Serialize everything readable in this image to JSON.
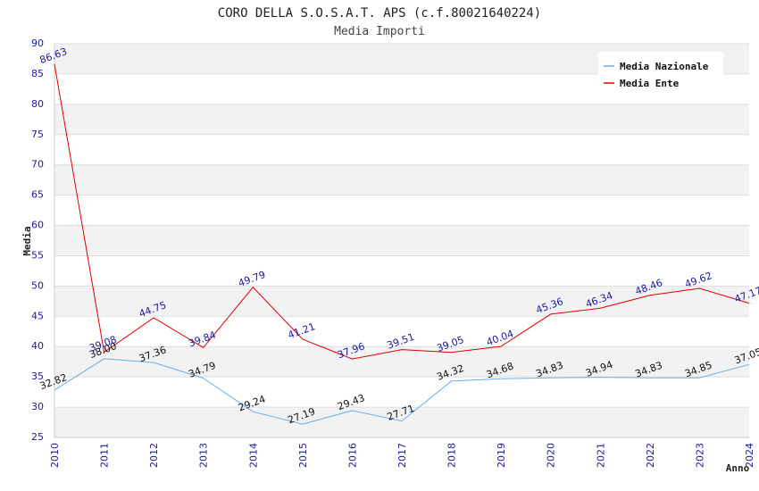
{
  "chart_data": {
    "type": "line",
    "title": "CORO DELLA S.O.S.A.T. APS (c.f.80021640224)",
    "subtitle": "Media Importi",
    "xlabel": "Anno",
    "ylabel": "Media",
    "x": [
      "2010",
      "2011",
      "2012",
      "2013",
      "2014",
      "2015",
      "2016",
      "2017",
      "2018",
      "2019",
      "2020",
      "2021",
      "2022",
      "2023",
      "2024"
    ],
    "ylim": [
      25,
      90
    ],
    "yticks": [
      25,
      30,
      35,
      40,
      45,
      50,
      55,
      60,
      65,
      70,
      75,
      80,
      85,
      90
    ],
    "grid": "horizontal alternating bands",
    "legend_position": "top-right",
    "series": [
      {
        "name": "Media Nazionale",
        "color": "#6aaee8",
        "label_color": "#111111",
        "values": [
          32.82,
          38.0,
          37.36,
          34.79,
          29.24,
          27.19,
          29.43,
          27.71,
          34.32,
          34.68,
          34.83,
          34.94,
          34.83,
          34.85,
          37.05
        ],
        "labels": [
          "32.82",
          "38.00",
          "37.36",
          "34.79",
          "29.24",
          "27.19",
          "29.43",
          "27.71",
          "34.32",
          "34.68",
          "34.83",
          "34.94",
          "34.83",
          "34.85",
          "37.05"
        ]
      },
      {
        "name": "Media Ente",
        "color": "#dd0000",
        "label_color": "#1a1a9c",
        "values": [
          86.63,
          39.08,
          44.75,
          39.84,
          49.79,
          41.21,
          37.96,
          39.51,
          39.05,
          40.04,
          45.36,
          46.34,
          48.46,
          49.62,
          47.17
        ],
        "labels": [
          "86.63",
          "39.08",
          "44.75",
          "39.84",
          "49.79",
          "41.21",
          "37.96",
          "39.51",
          "39.05",
          "40.04",
          "45.36",
          "46.34",
          "48.46",
          "49.62",
          "47.17"
        ]
      }
    ]
  }
}
